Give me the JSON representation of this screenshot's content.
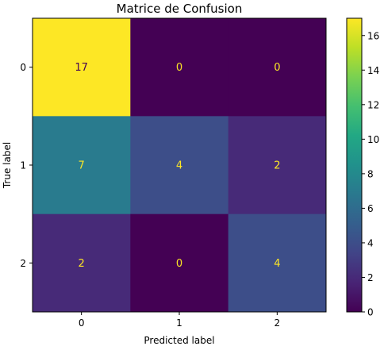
{
  "chart_data": {
    "type": "heatmap",
    "title": "Matrice de Confusion",
    "xlabel": "Predicted label",
    "ylabel": "True label",
    "x_categories": [
      "0",
      "1",
      "2"
    ],
    "y_categories": [
      "0",
      "1",
      "2"
    ],
    "values": [
      [
        17,
        0,
        0
      ],
      [
        7,
        4,
        2
      ],
      [
        2,
        0,
        4
      ]
    ],
    "colormap": "viridis",
    "colorbar": {
      "range": [
        0,
        17
      ],
      "ticks": [
        "0",
        "2",
        "4",
        "6",
        "8",
        "10",
        "12",
        "14",
        "16"
      ]
    },
    "annotation_colors": {
      "on_dark": "#fde725",
      "on_light": "#440154"
    }
  }
}
